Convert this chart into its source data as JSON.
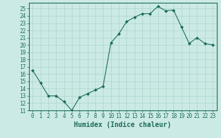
{
  "x": [
    0,
    1,
    2,
    3,
    4,
    5,
    6,
    7,
    8,
    9,
    10,
    11,
    12,
    13,
    14,
    15,
    16,
    17,
    18,
    19,
    20,
    21,
    22,
    23
  ],
  "y": [
    16.5,
    14.8,
    13.0,
    13.0,
    12.2,
    11.0,
    12.8,
    13.3,
    13.8,
    14.3,
    20.3,
    21.5,
    23.2,
    23.8,
    24.3,
    24.3,
    25.3,
    24.7,
    24.8,
    22.5,
    20.2,
    21.0,
    20.2,
    20.0
  ],
  "xlabel": "Humidex (Indice chaleur)",
  "line_color": "#1a6b5a",
  "marker": "D",
  "marker_size": 2.0,
  "bg_color": "#cceae5",
  "grid_color": "#aad4ce",
  "tick_color": "#1a6b5a",
  "spine_color": "#1a6b5a",
  "ylim": [
    11,
    25.8
  ],
  "xlim": [
    -0.5,
    23.5
  ],
  "yticks": [
    11,
    12,
    13,
    14,
    15,
    16,
    17,
    18,
    19,
    20,
    21,
    22,
    23,
    24,
    25
  ],
  "xticks": [
    0,
    1,
    2,
    3,
    4,
    5,
    6,
    7,
    8,
    9,
    10,
    11,
    12,
    13,
    14,
    15,
    16,
    17,
    18,
    19,
    20,
    21,
    22,
    23
  ],
  "xtick_labels": [
    "0",
    "1",
    "2",
    "3",
    "4",
    "5",
    "6",
    "7",
    "8",
    "9",
    "10",
    "11",
    "12",
    "13",
    "14",
    "15",
    "16",
    "17",
    "18",
    "19",
    "20",
    "21",
    "22",
    "23"
  ],
  "ytick_labels": [
    "11",
    "12",
    "13",
    "14",
    "15",
    "16",
    "17",
    "18",
    "19",
    "20",
    "21",
    "22",
    "23",
    "24",
    "25"
  ],
  "tick_fontsize": 5.5,
  "xlabel_fontsize": 7.0,
  "linewidth": 0.8
}
